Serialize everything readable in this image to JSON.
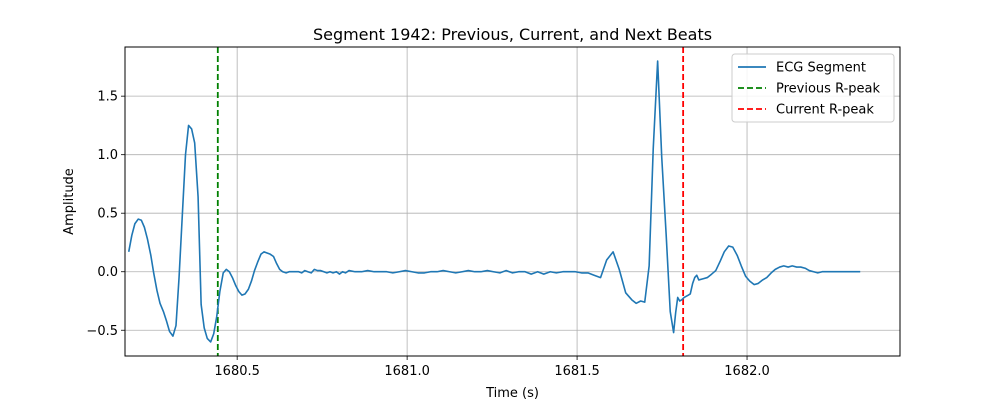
{
  "chart_data": {
    "type": "line",
    "title": "Segment 1942: Previous, Current, and Next Beats",
    "xlabel": "Time (s)",
    "ylabel": "Amplitude",
    "xlim": [
      1680.17,
      1682.45
    ],
    "ylim": [
      -0.72,
      1.92
    ],
    "x_ticks": [
      1680.5,
      1681.0,
      1681.5,
      1682.0
    ],
    "x_tick_labels": [
      "1680.5",
      "1681.0",
      "1681.5",
      "1682.0"
    ],
    "y_ticks": [
      -0.5,
      0.0,
      0.5,
      1.0,
      1.5
    ],
    "y_tick_labels": [
      "−0.5",
      "0.0",
      "0.5",
      "1.0",
      "1.5"
    ],
    "grid": true,
    "legend_position": "top-right",
    "series": [
      {
        "name": "ECG Segment",
        "color": "#1f77b4",
        "x": [
          1680.181,
          1680.19,
          1680.199,
          1680.209,
          1680.218,
          1680.227,
          1680.236,
          1680.246,
          1680.255,
          1680.264,
          1680.273,
          1680.283,
          1680.292,
          1680.301,
          1680.311,
          1680.32,
          1680.329,
          1680.338,
          1680.348,
          1680.357,
          1680.366,
          1680.375,
          1680.385,
          1680.394,
          1680.403,
          1680.412,
          1680.422,
          1680.431,
          1680.44,
          1680.449,
          1680.459,
          1680.468,
          1680.477,
          1680.486,
          1680.496,
          1680.505,
          1680.514,
          1680.523,
          1680.533,
          1680.542,
          1680.551,
          1680.56,
          1680.57,
          1680.579,
          1680.588,
          1680.597,
          1680.607,
          1680.616,
          1680.625,
          1680.634,
          1680.644,
          1680.653,
          1680.662,
          1680.671,
          1680.681,
          1680.69,
          1680.699,
          1680.708,
          1680.718,
          1680.727,
          1680.736,
          1680.745,
          1680.755,
          1680.764,
          1680.773,
          1680.782,
          1680.792,
          1680.801,
          1680.81,
          1680.819,
          1680.829,
          1680.847,
          1680.866,
          1680.884,
          1680.903,
          1680.921,
          1680.94,
          1680.958,
          1680.977,
          1680.995,
          1681.014,
          1681.032,
          1681.051,
          1681.069,
          1681.088,
          1681.106,
          1681.125,
          1681.143,
          1681.162,
          1681.18,
          1681.199,
          1681.217,
          1681.236,
          1681.254,
          1681.273,
          1681.291,
          1681.31,
          1681.328,
          1681.347,
          1681.365,
          1681.384,
          1681.402,
          1681.421,
          1681.439,
          1681.458,
          1681.476,
          1681.495,
          1681.513,
          1681.532,
          1681.55,
          1681.569,
          1681.587,
          1681.606,
          1681.624,
          1681.643,
          1681.661,
          1681.674,
          1681.687,
          1681.699,
          1681.712,
          1681.724,
          1681.737,
          1681.749,
          1681.762,
          1681.774,
          1681.784,
          1681.79,
          1681.796,
          1681.802,
          1681.808,
          1681.815,
          1681.821,
          1681.827,
          1681.833,
          1681.84,
          1681.846,
          1681.852,
          1681.858,
          1681.871,
          1681.883,
          1681.896,
          1681.908,
          1681.921,
          1681.933,
          1681.946,
          1681.958,
          1681.971,
          1681.983,
          1681.996,
          1682.008,
          1682.021,
          1682.033,
          1682.046,
          1682.058,
          1682.071,
          1682.083,
          1682.096,
          1682.108,
          1682.121,
          1682.133,
          1682.146,
          1682.158,
          1682.171,
          1682.183,
          1682.196,
          1682.208,
          1682.221,
          1682.233,
          1682.246,
          1682.258,
          1682.271,
          1682.283,
          1682.296,
          1682.308,
          1682.321,
          1682.333
        ],
        "y": [
          0.17,
          0.31,
          0.41,
          0.45,
          0.44,
          0.38,
          0.28,
          0.14,
          -0.02,
          -0.16,
          -0.27,
          -0.34,
          -0.42,
          -0.51,
          -0.55,
          -0.46,
          -0.05,
          0.45,
          1.0,
          1.25,
          1.22,
          1.1,
          0.64,
          -0.28,
          -0.48,
          -0.57,
          -0.6,
          -0.53,
          -0.38,
          -0.17,
          -0.01,
          0.02,
          0.0,
          -0.05,
          -0.12,
          -0.17,
          -0.2,
          -0.19,
          -0.15,
          -0.08,
          0.01,
          0.08,
          0.15,
          0.17,
          0.16,
          0.15,
          0.13,
          0.07,
          0.02,
          0.0,
          -0.01,
          0.0,
          0.0,
          0.0,
          0.0,
          -0.01,
          0.01,
          0.0,
          -0.01,
          0.02,
          0.01,
          0.01,
          0.0,
          -0.01,
          0.0,
          -0.01,
          0.0,
          -0.02,
          0.0,
          -0.01,
          0.01,
          0.0,
          0.0,
          0.01,
          0.0,
          0.0,
          0.0,
          -0.01,
          0.0,
          0.01,
          0.0,
          -0.01,
          -0.01,
          0.0,
          0.0,
          0.01,
          0.0,
          -0.01,
          0.0,
          0.01,
          0.0,
          0.0,
          0.01,
          0.0,
          -0.01,
          0.01,
          -0.01,
          0.0,
          0.0,
          -0.02,
          0.0,
          -0.02,
          0.0,
          -0.01,
          0.0,
          0.0,
          0.0,
          -0.01,
          -0.01,
          -0.03,
          -0.05,
          0.1,
          0.17,
          0.02,
          -0.18,
          -0.24,
          -0.27,
          -0.25,
          -0.26,
          0.05,
          1.05,
          1.8,
          0.98,
          0.32,
          -0.34,
          -0.52,
          -0.35,
          -0.22,
          -0.25,
          -0.24,
          -0.22,
          -0.21,
          -0.2,
          -0.19,
          -0.1,
          -0.05,
          -0.03,
          -0.07,
          -0.06,
          -0.05,
          -0.02,
          0.01,
          0.09,
          0.17,
          0.22,
          0.21,
          0.14,
          0.05,
          -0.04,
          -0.08,
          -0.11,
          -0.1,
          -0.07,
          -0.05,
          -0.01,
          0.02,
          0.04,
          0.05,
          0.04,
          0.05,
          0.04,
          0.04,
          0.03,
          0.01,
          0.0,
          -0.01,
          0.0,
          0.0,
          0.0,
          0.0,
          0.0,
          0.0,
          0.0,
          0.0,
          0.0,
          0.0
        ]
      }
    ],
    "vlines": [
      {
        "name": "Previous R-peak",
        "x": 1680.443,
        "color": "#008000"
      },
      {
        "name": "Current R-peak",
        "x": 1681.812,
        "color": "#ff0000"
      }
    ],
    "legend": [
      {
        "label": "ECG Segment",
        "style": "solid",
        "color": "#1f77b4"
      },
      {
        "label": "Previous R-peak",
        "style": "dashed",
        "color": "#008000"
      },
      {
        "label": "Current R-peak",
        "style": "dashed",
        "color": "#ff0000"
      }
    ]
  }
}
